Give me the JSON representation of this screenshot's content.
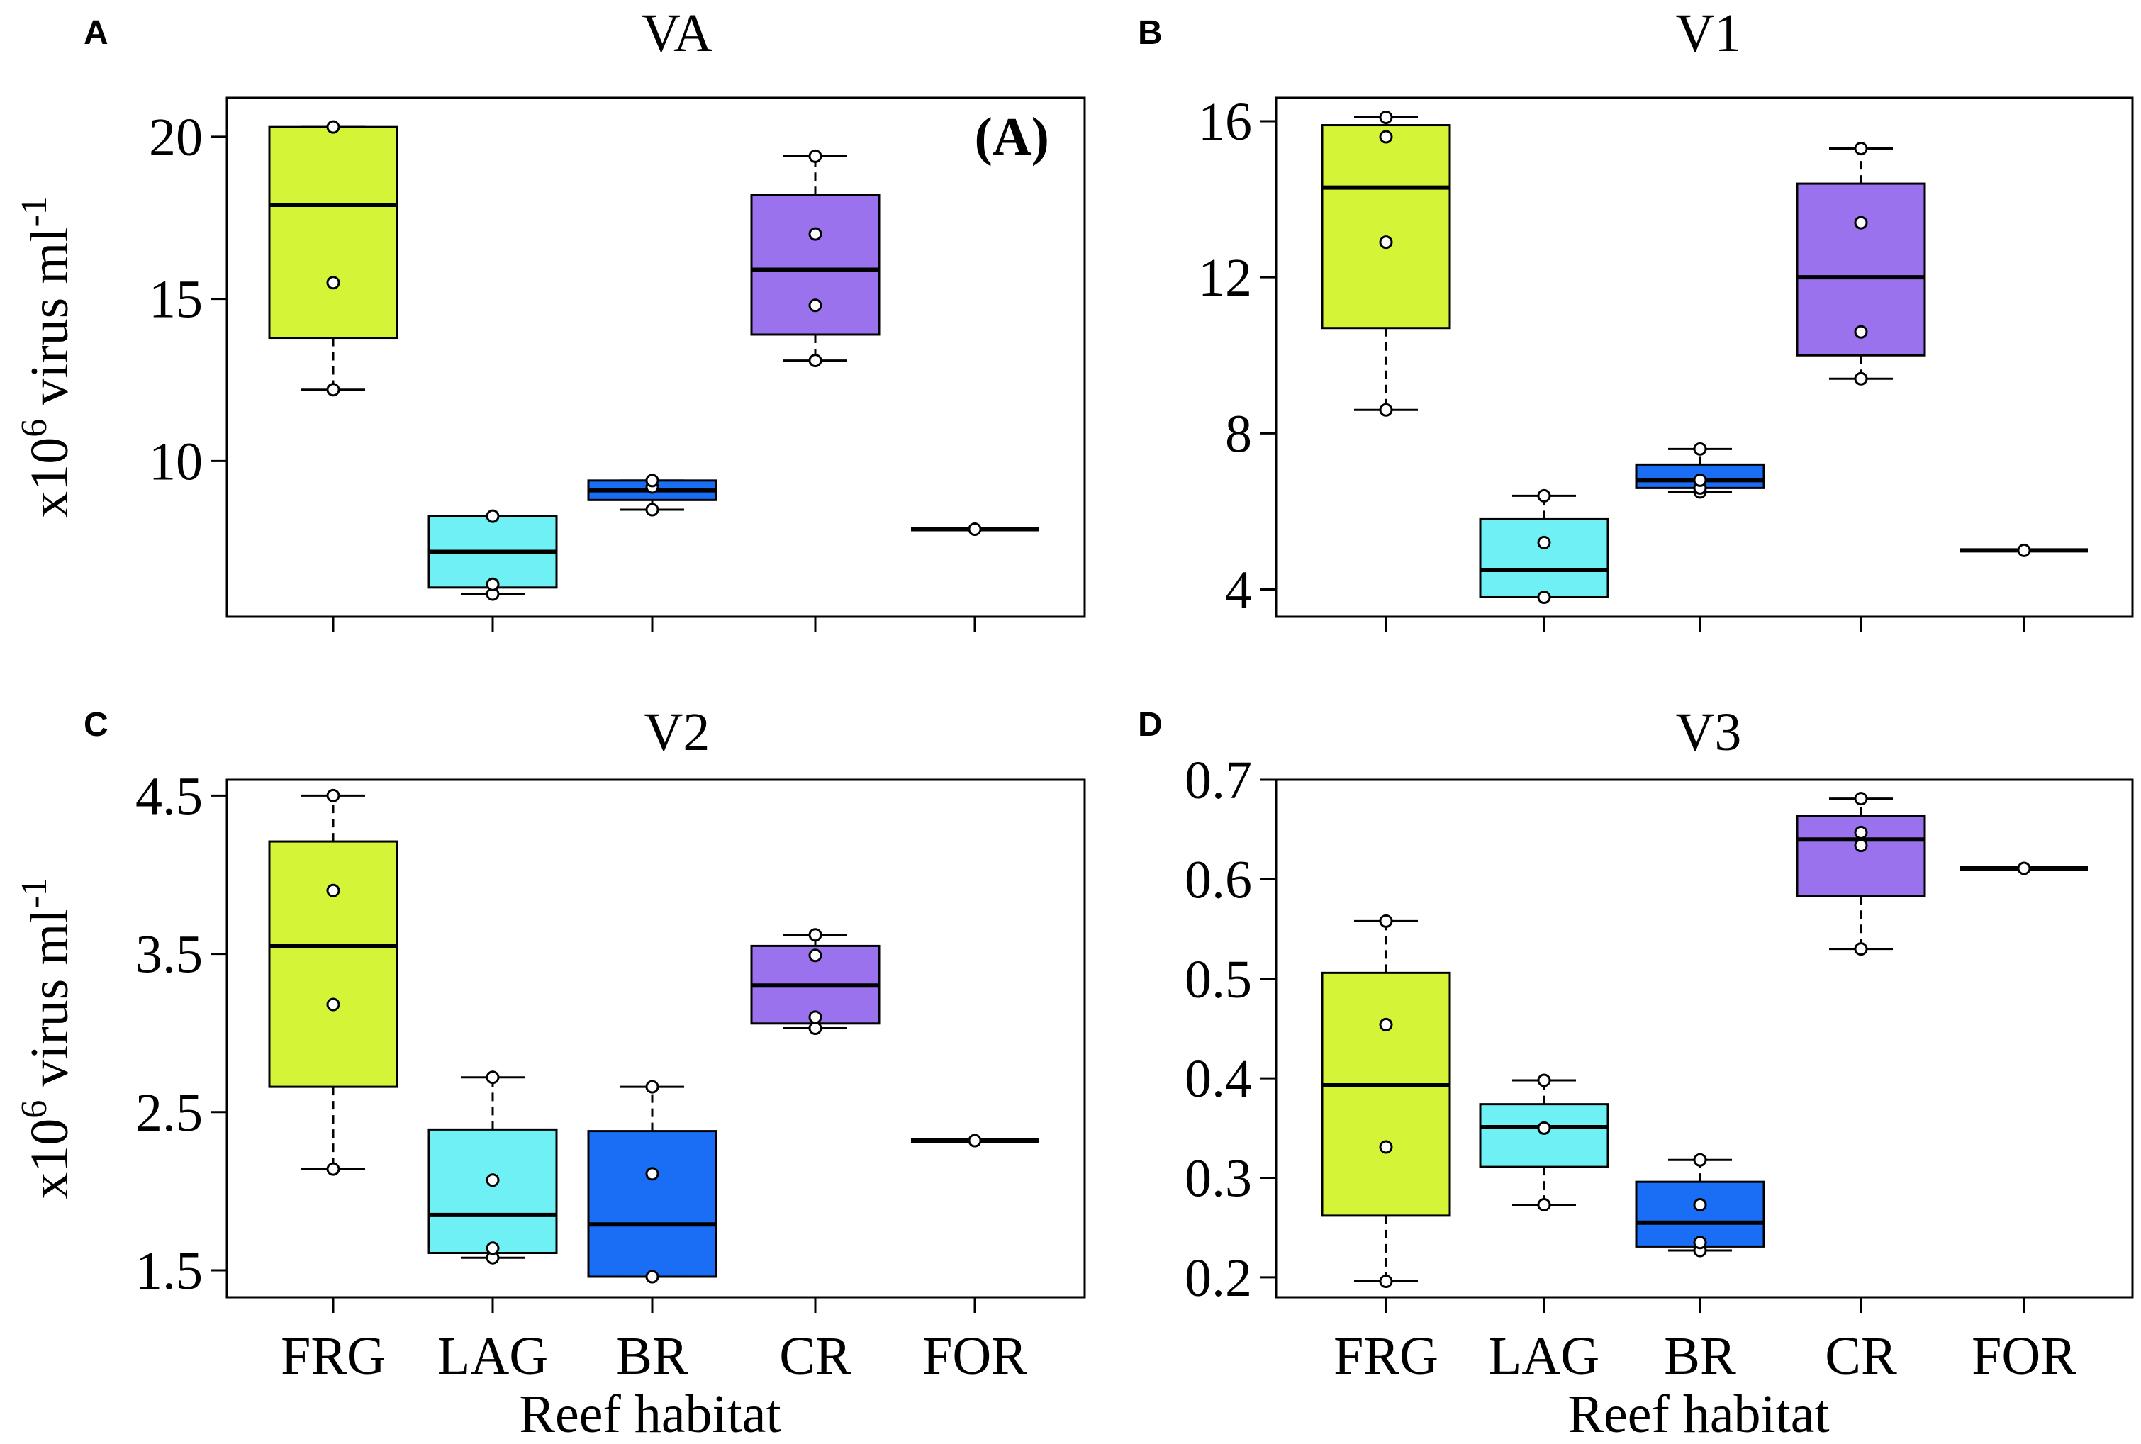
{
  "chart_data": [
    {
      "panel_label": "A",
      "title": "VA",
      "type": "box",
      "ylabel": "x10",
      "ylabel_exp": "6",
      "ylabel_rest": " virus ml",
      "ylabel_unit_exp": "-1",
      "xlabel": "",
      "ylim": [
        5.2,
        21.2
      ],
      "yticks": [
        10,
        15,
        20
      ],
      "ytick_labels": [
        "10",
        "15",
        "20"
      ],
      "annotation": "(A)",
      "categories": [
        "FRG",
        "LAG",
        "BR",
        "CR",
        "FOR"
      ],
      "show_category_labels": false,
      "colors": [
        "#d4f537",
        "#6ef0f5",
        "#1a6ef5",
        "#9b72ee",
        "#9b72ee"
      ],
      "boxes": [
        {
          "category": "FRG",
          "whisker_low": 12.2,
          "q1": 13.8,
          "median": 17.9,
          "q3": 20.3,
          "whisker_high": 20.3,
          "points": [
            12.2,
            15.5,
            20.3
          ]
        },
        {
          "category": "LAG",
          "whisker_low": 5.9,
          "q1": 6.1,
          "median": 7.2,
          "q3": 8.3,
          "whisker_high": 8.3,
          "points": [
            5.9,
            6.2,
            8.3
          ]
        },
        {
          "category": "BR",
          "whisker_low": 8.5,
          "q1": 8.8,
          "median": 9.1,
          "q3": 9.4,
          "whisker_high": 9.4,
          "points": [
            8.5,
            9.2,
            9.4
          ]
        },
        {
          "category": "CR",
          "whisker_low": 13.1,
          "q1": 13.9,
          "median": 15.9,
          "q3": 18.2,
          "whisker_high": 19.4,
          "points": [
            13.1,
            14.8,
            17.0,
            19.4
          ]
        },
        {
          "category": "FOR",
          "whisker_low": 7.9,
          "q1": 7.9,
          "median": 7.9,
          "q3": 7.9,
          "whisker_high": 7.9,
          "points": [
            7.9
          ]
        }
      ]
    },
    {
      "panel_label": "B",
      "title": "V1",
      "type": "box",
      "ylabel": "",
      "xlabel": "",
      "ylim": [
        3.3,
        16.6
      ],
      "yticks": [
        4,
        8,
        12,
        16
      ],
      "ytick_labels": [
        "4",
        "8",
        "12",
        "16"
      ],
      "categories": [
        "FRG",
        "LAG",
        "BR",
        "CR",
        "FOR"
      ],
      "show_category_labels": false,
      "colors": [
        "#d4f537",
        "#6ef0f5",
        "#1a6ef5",
        "#9b72ee",
        "#9b72ee"
      ],
      "boxes": [
        {
          "category": "FRG",
          "whisker_low": 8.6,
          "q1": 10.7,
          "median": 14.3,
          "q3": 15.9,
          "whisker_high": 16.1,
          "points": [
            8.6,
            12.9,
            15.6,
            16.1
          ]
        },
        {
          "category": "LAG",
          "whisker_low": 3.8,
          "q1": 3.8,
          "median": 4.5,
          "q3": 5.8,
          "whisker_high": 6.4,
          "points": [
            3.8,
            5.2,
            6.4
          ]
        },
        {
          "category": "BR",
          "whisker_low": 6.5,
          "q1": 6.6,
          "median": 6.8,
          "q3": 7.2,
          "whisker_high": 7.6,
          "points": [
            6.5,
            6.6,
            6.8,
            7.6
          ]
        },
        {
          "category": "CR",
          "whisker_low": 9.4,
          "q1": 10.0,
          "median": 12.0,
          "q3": 14.4,
          "whisker_high": 15.3,
          "points": [
            9.4,
            10.6,
            13.4,
            15.3
          ]
        },
        {
          "category": "FOR",
          "whisker_low": 5.0,
          "q1": 5.0,
          "median": 5.0,
          "q3": 5.0,
          "whisker_high": 5.0,
          "points": [
            5.0
          ]
        }
      ]
    },
    {
      "panel_label": "C",
      "title": "V2",
      "type": "box",
      "ylabel": "x10",
      "ylabel_exp": "6",
      "ylabel_rest": " virus ml",
      "ylabel_unit_exp": "-1",
      "xlabel": "Reef habitat",
      "ylim": [
        1.33,
        4.6
      ],
      "yticks": [
        1.5,
        2.5,
        3.5,
        4.5
      ],
      "ytick_labels": [
        "1.5",
        "2.5",
        "3.5",
        "4.5"
      ],
      "categories": [
        "FRG",
        "LAG",
        "BR",
        "CR",
        "FOR"
      ],
      "show_category_labels": true,
      "colors": [
        "#d4f537",
        "#6ef0f5",
        "#1a6ef5",
        "#9b72ee",
        "#9b72ee"
      ],
      "boxes": [
        {
          "category": "FRG",
          "whisker_low": 2.14,
          "q1": 2.66,
          "median": 3.55,
          "q3": 4.21,
          "whisker_high": 4.5,
          "points": [
            2.14,
            3.18,
            3.9,
            4.5
          ]
        },
        {
          "category": "LAG",
          "whisker_low": 1.58,
          "q1": 1.61,
          "median": 1.85,
          "q3": 2.39,
          "whisker_high": 2.72,
          "points": [
            1.58,
            1.64,
            2.07,
            2.72
          ]
        },
        {
          "category": "BR",
          "whisker_low": 1.46,
          "q1": 1.46,
          "median": 1.79,
          "q3": 2.38,
          "whisker_high": 2.66,
          "points": [
            1.46,
            2.11,
            2.66
          ]
        },
        {
          "category": "CR",
          "whisker_low": 3.03,
          "q1": 3.06,
          "median": 3.3,
          "q3": 3.55,
          "whisker_high": 3.62,
          "points": [
            3.03,
            3.1,
            3.49,
            3.62
          ]
        },
        {
          "category": "FOR",
          "whisker_low": 2.32,
          "q1": 2.32,
          "median": 2.32,
          "q3": 2.32,
          "whisker_high": 2.32,
          "points": [
            2.32
          ]
        }
      ]
    },
    {
      "panel_label": "D",
      "title": "V3",
      "type": "box",
      "ylabel": "",
      "xlabel": "Reef habitat",
      "ylim": [
        0.18,
        0.7
      ],
      "yticks": [
        0.2,
        0.3,
        0.4,
        0.5,
        0.6,
        0.7
      ],
      "ytick_labels": [
        "0.2",
        "0.3",
        "0.4",
        "0.5",
        "0.6",
        "0.7"
      ],
      "categories": [
        "FRG",
        "LAG",
        "BR",
        "CR",
        "FOR"
      ],
      "show_category_labels": true,
      "colors": [
        "#d4f537",
        "#6ef0f5",
        "#1a6ef5",
        "#9b72ee",
        "#9b72ee"
      ],
      "boxes": [
        {
          "category": "FRG",
          "whisker_low": 0.196,
          "q1": 0.262,
          "median": 0.393,
          "q3": 0.506,
          "whisker_high": 0.558,
          "points": [
            0.196,
            0.331,
            0.454,
            0.558
          ]
        },
        {
          "category": "LAG",
          "whisker_low": 0.273,
          "q1": 0.311,
          "median": 0.351,
          "q3": 0.374,
          "whisker_high": 0.398,
          "points": [
            0.273,
            0.35,
            0.398
          ]
        },
        {
          "category": "BR",
          "whisker_low": 0.227,
          "q1": 0.231,
          "median": 0.255,
          "q3": 0.296,
          "whisker_high": 0.318,
          "points": [
            0.227,
            0.235,
            0.273,
            0.318
          ]
        },
        {
          "category": "CR",
          "whisker_low": 0.53,
          "q1": 0.583,
          "median": 0.64,
          "q3": 0.664,
          "whisker_high": 0.681,
          "points": [
            0.53,
            0.634,
            0.647,
            0.681
          ]
        },
        {
          "category": "FOR",
          "whisker_low": 0.611,
          "q1": 0.611,
          "median": 0.611,
          "q3": 0.611,
          "whisker_high": 0.611,
          "points": [
            0.611
          ]
        }
      ]
    }
  ]
}
